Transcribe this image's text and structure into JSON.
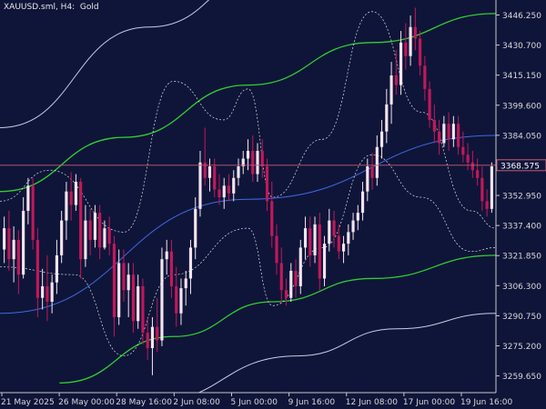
{
  "header": {
    "title": "XAUUSD.sml, H4:  Gold"
  },
  "colors": {
    "background": "#0f1539",
    "candle_up": "#f3e4ef",
    "candle_down": "#c2185b",
    "inner_channel": "#32cd32",
    "outer_channel": "#c8cce4",
    "mid_line": "#4169e1",
    "envelope": "#e0e0e0",
    "price_line": "#c85a78",
    "axis": "#c8c8c8"
  },
  "chart_data": {
    "type": "candlestick",
    "title": "XAUUSD.sml, H4:  Gold",
    "instrument": "XAUUSD.sml",
    "timeframe": "H4",
    "description": "Gold",
    "current_price": "3368.575",
    "ylim": [
      3251,
      3454
    ],
    "y_ticks": [
      "3446.250",
      "3430.700",
      "3415.150",
      "3399.600",
      "3384.050",
      "3368.500",
      "3352.950",
      "3337.400",
      "3321.850",
      "3306.300",
      "3290.750",
      "3275.200",
      "3259.650"
    ],
    "x_ticks": [
      "21 May 2025",
      "26 May 00:00",
      "28 May 16:00",
      "2 Jun 08:00",
      "5 Jun 00:00",
      "9 Jun 16:00",
      "12 Jun 08:00",
      "17 Jun 00:00",
      "19 Jun 16:00"
    ],
    "candles": [
      [
        3325,
        3342,
        3318,
        3336
      ],
      [
        3336,
        3345,
        3314,
        3320
      ],
      [
        3320,
        3337,
        3308,
        3330
      ],
      [
        3330,
        3335,
        3302,
        3312
      ],
      [
        3312,
        3352,
        3310,
        3345
      ],
      [
        3345,
        3362,
        3338,
        3358
      ],
      [
        3358,
        3362,
        3325,
        3330
      ],
      [
        3330,
        3336,
        3290,
        3300
      ],
      [
        3300,
        3315,
        3294,
        3306
      ],
      [
        3306,
        3322,
        3288,
        3298
      ],
      [
        3298,
        3312,
        3292,
        3308
      ],
      [
        3308,
        3330,
        3302,
        3322
      ],
      [
        3322,
        3345,
        3318,
        3340
      ],
      [
        3340,
        3360,
        3330,
        3355
      ],
      [
        3355,
        3365,
        3340,
        3348
      ],
      [
        3348,
        3364,
        3345,
        3360
      ],
      [
        3360,
        3362,
        3310,
        3320
      ],
      [
        3320,
        3348,
        3316,
        3340
      ],
      [
        3340,
        3346,
        3322,
        3330
      ],
      [
        3330,
        3348,
        3326,
        3344
      ],
      [
        3344,
        3348,
        3320,
        3326
      ],
      [
        3326,
        3340,
        3325,
        3336
      ],
      [
        3336,
        3342,
        3322,
        3328
      ],
      [
        3328,
        3332,
        3280,
        3290
      ],
      [
        3290,
        3325,
        3286,
        3318
      ],
      [
        3318,
        3325,
        3298,
        3304
      ],
      [
        3304,
        3318,
        3290,
        3312
      ],
      [
        3312,
        3318,
        3282,
        3288
      ],
      [
        3288,
        3312,
        3284,
        3306
      ],
      [
        3306,
        3310,
        3276,
        3282
      ],
      [
        3282,
        3290,
        3268,
        3274
      ],
      [
        3274,
        3290,
        3260,
        3285
      ],
      [
        3285,
        3300,
        3272,
        3278
      ],
      [
        3278,
        3326,
        3275,
        3320
      ],
      [
        3320,
        3330,
        3312,
        3324
      ],
      [
        3324,
        3330,
        3300,
        3306
      ],
      [
        3306,
        3316,
        3285,
        3292
      ],
      [
        3292,
        3310,
        3286,
        3305
      ],
      [
        3305,
        3314,
        3296,
        3310
      ],
      [
        3310,
        3330,
        3302,
        3326
      ],
      [
        3326,
        3352,
        3320,
        3346
      ],
      [
        3346,
        3376,
        3342,
        3370
      ],
      [
        3370,
        3388,
        3358,
        3362
      ],
      [
        3362,
        3372,
        3355,
        3368
      ],
      [
        3368,
        3372,
        3352,
        3356
      ],
      [
        3356,
        3364,
        3348,
        3352
      ],
      [
        3352,
        3362,
        3346,
        3358
      ],
      [
        3358,
        3364,
        3350,
        3354
      ],
      [
        3354,
        3366,
        3350,
        3362
      ],
      [
        3362,
        3372,
        3358,
        3368
      ],
      [
        3368,
        3376,
        3364,
        3372
      ],
      [
        3372,
        3382,
        3366,
        3376
      ],
      [
        3376,
        3384,
        3360,
        3364
      ],
      [
        3364,
        3380,
        3360,
        3376
      ],
      [
        3376,
        3382,
        3362,
        3368
      ],
      [
        3368,
        3372,
        3345,
        3350
      ],
      [
        3350,
        3360,
        3326,
        3332
      ],
      [
        3332,
        3338,
        3312,
        3318
      ],
      [
        3318,
        3326,
        3298,
        3304
      ],
      [
        3304,
        3310,
        3296,
        3300
      ],
      [
        3300,
        3318,
        3298,
        3314
      ],
      [
        3314,
        3320,
        3300,
        3306
      ],
      [
        3306,
        3330,
        3302,
        3326
      ],
      [
        3326,
        3342,
        3320,
        3336
      ],
      [
        3336,
        3342,
        3316,
        3322
      ],
      [
        3322,
        3342,
        3318,
        3338
      ],
      [
        3338,
        3344,
        3304,
        3310
      ],
      [
        3310,
        3332,
        3306,
        3328
      ],
      [
        3328,
        3346,
        3324,
        3340
      ],
      [
        3340,
        3345,
        3326,
        3332
      ],
      [
        3332,
        3338,
        3320,
        3324
      ],
      [
        3324,
        3332,
        3318,
        3328
      ],
      [
        3328,
        3338,
        3322,
        3334
      ],
      [
        3334,
        3344,
        3330,
        3340
      ],
      [
        3340,
        3348,
        3335,
        3344
      ],
      [
        3344,
        3360,
        3340,
        3355
      ],
      [
        3355,
        3372,
        3350,
        3368
      ],
      [
        3368,
        3375,
        3356,
        3362
      ],
      [
        3362,
        3384,
        3358,
        3378
      ],
      [
        3378,
        3392,
        3372,
        3386
      ],
      [
        3386,
        3408,
        3380,
        3400
      ],
      [
        3400,
        3422,
        3390,
        3415
      ],
      [
        3415,
        3428,
        3405,
        3410
      ],
      [
        3410,
        3438,
        3405,
        3432
      ],
      [
        3432,
        3442,
        3418,
        3425
      ],
      [
        3425,
        3446,
        3420,
        3440
      ],
      [
        3440,
        3450,
        3428,
        3434
      ],
      [
        3434,
        3438,
        3415,
        3420
      ],
      [
        3420,
        3425,
        3402,
        3408
      ],
      [
        3408,
        3412,
        3388,
        3392
      ],
      [
        3392,
        3400,
        3380,
        3386
      ],
      [
        3386,
        3392,
        3374,
        3380
      ],
      [
        3380,
        3394,
        3378,
        3390
      ],
      [
        3390,
        3396,
        3376,
        3382
      ],
      [
        3382,
        3394,
        3378,
        3390
      ],
      [
        3390,
        3394,
        3374,
        3378
      ],
      [
        3378,
        3386,
        3370,
        3374
      ],
      [
        3374,
        3380,
        3366,
        3370
      ],
      [
        3370,
        3376,
        3362,
        3366
      ],
      [
        3366,
        3372,
        3358,
        3362
      ],
      [
        3362,
        3368,
        3345,
        3350
      ],
      [
        3350,
        3356,
        3342,
        3346
      ],
      [
        3346,
        3370,
        3344,
        3368
      ]
    ],
    "inner_upper_channel": [
      [
        0,
        3355
      ],
      [
        0.25,
        3383
      ],
      [
        0.5,
        3410
      ],
      [
        0.75,
        3432
      ],
      [
        1,
        3447
      ]
    ],
    "inner_lower_channel": [
      [
        0.12,
        3256
      ],
      [
        0.35,
        3280
      ],
      [
        0.55,
        3298
      ],
      [
        0.75,
        3310
      ],
      [
        1,
        3322
      ]
    ],
    "outer_upper_channel": [
      [
        0,
        3388
      ],
      [
        0.3,
        3440
      ],
      [
        0.55,
        3470
      ]
    ],
    "outer_lower_channel": [
      [
        0.3,
        3246
      ],
      [
        0.6,
        3270
      ],
      [
        0.8,
        3284
      ],
      [
        1,
        3292
      ]
    ],
    "mid_line": [
      [
        0,
        3292
      ],
      [
        0.5,
        3351
      ],
      [
        1,
        3384
      ]
    ],
    "upper_envelope": [
      [
        0,
        3350
      ],
      [
        0.1,
        3366
      ],
      [
        0.25,
        3334
      ],
      [
        0.35,
        3412
      ],
      [
        0.45,
        3392
      ],
      [
        0.5,
        3408
      ],
      [
        0.55,
        3352
      ],
      [
        0.65,
        3382
      ],
      [
        0.75,
        3448
      ],
      [
        0.85,
        3396
      ],
      [
        0.95,
        3345
      ],
      [
        1,
        3336
      ]
    ],
    "lower_envelope": [
      [
        0,
        3316
      ],
      [
        0.15,
        3312
      ],
      [
        0.25,
        3270
      ],
      [
        0.35,
        3312
      ],
      [
        0.5,
        3336
      ],
      [
        0.55,
        3296
      ],
      [
        0.65,
        3326
      ],
      [
        0.75,
        3374
      ],
      [
        0.85,
        3352
      ],
      [
        0.95,
        3324
      ],
      [
        1,
        3326
      ]
    ]
  }
}
